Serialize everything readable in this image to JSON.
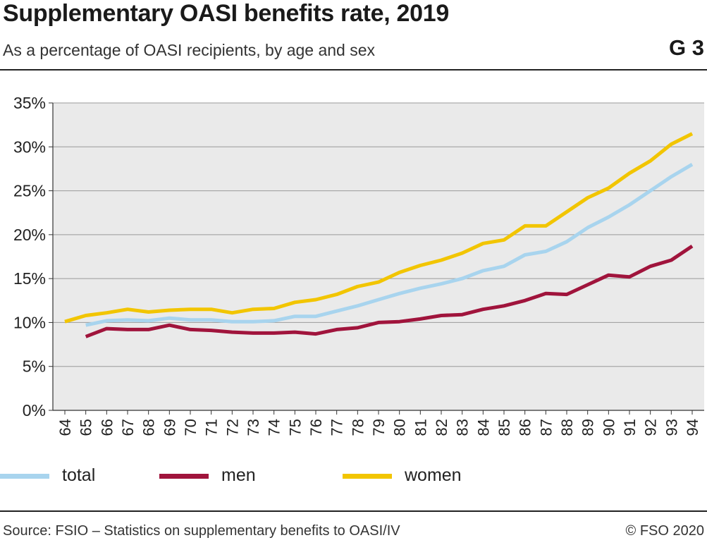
{
  "header": {
    "title": "Supplementary OASI benefits rate, 2019",
    "subtitle": "As a percentage of OASI recipients, by age and sex",
    "graph_code": "G 3"
  },
  "footer": {
    "source": "Source: FSIO – Statistics on supplementary benefits to OASI/IV",
    "copyright": "© FSO 2020"
  },
  "chart_data": {
    "type": "line",
    "title": "Supplementary OASI benefits rate, 2019",
    "subtitle": "As a percentage of OASI recipients, by age and sex",
    "xlabel": "",
    "ylabel": "",
    "x": [
      "64",
      "65",
      "66",
      "67",
      "68",
      "69",
      "70",
      "71",
      "72",
      "73",
      "74",
      "75",
      "76",
      "77",
      "78",
      "79",
      "80",
      "81",
      "82",
      "83",
      "84",
      "85",
      "86",
      "87",
      "88",
      "89",
      "90",
      "91",
      "92",
      "93",
      "94"
    ],
    "ylim": [
      0,
      35
    ],
    "yticks": [
      0,
      5,
      10,
      15,
      20,
      25,
      30,
      35
    ],
    "ytick_labels": [
      "0%",
      "5%",
      "10%",
      "15%",
      "20%",
      "25%",
      "30%",
      "35%"
    ],
    "grid": true,
    "legend_position": "bottom",
    "series": [
      {
        "name": "total",
        "color": "#a8d4ee",
        "values": [
          null,
          9.7,
          10.2,
          10.3,
          10.2,
          10.5,
          10.3,
          10.3,
          10.1,
          10.1,
          10.2,
          10.7,
          10.7,
          11.3,
          11.9,
          12.6,
          13.3,
          13.9,
          14.4,
          15.0,
          15.9,
          16.4,
          17.7,
          18.1,
          19.2,
          20.8,
          22.0,
          23.4,
          25.0,
          26.6,
          28.0
        ]
      },
      {
        "name": "men",
        "color": "#a0143c",
        "values": [
          null,
          8.4,
          9.3,
          9.2,
          9.2,
          9.7,
          9.2,
          9.1,
          8.9,
          8.8,
          8.8,
          8.9,
          8.7,
          9.2,
          9.4,
          10.0,
          10.1,
          10.4,
          10.8,
          10.9,
          11.5,
          11.9,
          12.5,
          13.3,
          13.2,
          14.3,
          15.4,
          15.2,
          16.4,
          17.1,
          18.7
        ]
      },
      {
        "name": "women",
        "color": "#f2c500",
        "values": [
          10.1,
          10.8,
          11.1,
          11.5,
          11.2,
          11.4,
          11.5,
          11.5,
          11.1,
          11.5,
          11.6,
          12.3,
          12.6,
          13.2,
          14.1,
          14.6,
          15.7,
          16.5,
          17.1,
          17.9,
          19.0,
          19.4,
          21.0,
          21.0,
          22.6,
          24.2,
          25.3,
          27.0,
          28.4,
          30.3,
          31.5
        ]
      }
    ],
    "colors": {
      "plot_background": "#eaeaea",
      "grid": "#9a9a9a",
      "axis": "#333333"
    }
  }
}
